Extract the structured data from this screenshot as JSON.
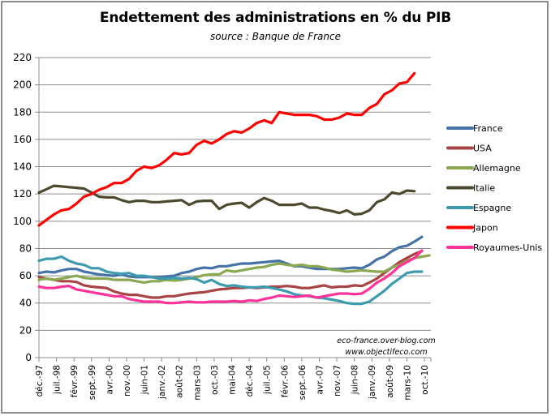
{
  "chart_data": {
    "type": "line",
    "title": "Endettement des administrations  en % du PIB",
    "subtitle": "source : Banque de France",
    "xlabel": "",
    "ylabel": "",
    "ylim": [
      0,
      220
    ],
    "yticks": [
      0,
      20,
      40,
      60,
      80,
      100,
      120,
      140,
      160,
      180,
      200,
      220
    ],
    "grid": true,
    "legend_position": "right",
    "x_tick_labels": [
      "déc.-97",
      "juil.-98",
      "févr.-99",
      "sept.-99",
      "avr.-00",
      "nov.-00",
      "juin-01",
      "janv.-02",
      "août-02",
      "mars-03",
      "oct.-03",
      "mai-04",
      "déc.-04",
      "juil.-05",
      "févr.-06",
      "sept.-06",
      "avr.-07",
      "nov.-07",
      "juin-08",
      "janv.-09",
      "août-09",
      "mars-10",
      "oct.-10"
    ],
    "x_tick_interval_months": 7,
    "x_start": "déc.-97",
    "point_interval_months": 3,
    "series": [
      {
        "name": "France",
        "color": "#4672a8",
        "values": [
          62,
          63,
          62.5,
          64,
          65,
          65,
          63,
          62,
          61,
          60.5,
          60,
          61,
          59.5,
          59,
          59,
          59,
          59,
          59.5,
          60,
          62,
          63,
          65,
          66,
          65.5,
          67,
          67,
          68,
          69,
          69,
          69.5,
          70,
          70.5,
          71,
          69,
          67,
          67,
          66,
          65,
          65,
          65,
          65,
          65.5,
          66,
          65.5,
          68,
          72,
          74,
          78,
          81,
          82,
          85,
          88.5
        ]
      },
      {
        "name": "USA",
        "color": "#a84443",
        "values": [
          59,
          58,
          57,
          56,
          56,
          55.5,
          53,
          52,
          51.5,
          51,
          48.5,
          47,
          46,
          46,
          45,
          44,
          44,
          45,
          45,
          46,
          47,
          47.5,
          48,
          49,
          50,
          50.5,
          51,
          51,
          51.5,
          51,
          51.5,
          52,
          52,
          52.5,
          52,
          51,
          51,
          52,
          53,
          51.5,
          52,
          52,
          53,
          52.5,
          55,
          58,
          62,
          66,
          70,
          73,
          76,
          78
        ]
      },
      {
        "name": "Allemagne",
        "color": "#8aa84f",
        "values": [
          57,
          58,
          57,
          58,
          59,
          60,
          58.5,
          58,
          58,
          58,
          57,
          57,
          57,
          56,
          55,
          56,
          56,
          57,
          56.5,
          57,
          58,
          59,
          60.5,
          61,
          61,
          64,
          63,
          64,
          65,
          66,
          66.5,
          68,
          69,
          68,
          67.5,
          68,
          67,
          67,
          66,
          64.5,
          64,
          63,
          63.5,
          64,
          63.5,
          63,
          63,
          66,
          68,
          71,
          73,
          74,
          75
        ]
      },
      {
        "name": "Italie",
        "color": "#4d4a30",
        "values": [
          121,
          123.5,
          126,
          125.5,
          125,
          124.5,
          124,
          121,
          118,
          117.5,
          117.5,
          115.5,
          114,
          115,
          115,
          114,
          114,
          114.5,
          115,
          115.5,
          112,
          114.5,
          115,
          115,
          109,
          112,
          113,
          113.5,
          110,
          114,
          117,
          115,
          112,
          112,
          112,
          113,
          110,
          110,
          108.5,
          107.5,
          106,
          108,
          105,
          105.5,
          108,
          114,
          116,
          121,
          120,
          122.5,
          122
        ]
      },
      {
        "name": "Espagne",
        "color": "#3e9aaf",
        "values": [
          71,
          72.5,
          72.5,
          74,
          71,
          69,
          68,
          65.5,
          65.5,
          63,
          62,
          61.5,
          62,
          60,
          60,
          59,
          58,
          58,
          58.5,
          58,
          58.5,
          57.5,
          55,
          57,
          54,
          52.5,
          53,
          52,
          51.5,
          51.5,
          52,
          51,
          50,
          48.5,
          46.5,
          45.5,
          45,
          44,
          43.5,
          42.5,
          41.5,
          40,
          39.5,
          39.5,
          41,
          45,
          49,
          54,
          58,
          62,
          63,
          63
        ]
      },
      {
        "name": "Japon",
        "color": "#ff0000",
        "values": [
          97,
          101,
          105,
          108,
          109,
          113,
          118,
          120,
          123,
          125,
          128,
          128,
          131,
          137,
          140,
          139,
          141,
          145,
          150,
          149,
          150,
          156,
          159,
          157,
          160,
          164,
          166,
          165,
          168,
          172,
          174,
          172,
          180,
          179,
          178,
          178,
          178,
          177,
          174.5,
          174.5,
          176,
          179,
          178,
          178,
          183,
          186,
          193,
          196,
          201,
          202,
          208.5
        ]
      },
      {
        "name": "Royaumes-Unis",
        "color": "#ff3399",
        "values": [
          52,
          51,
          51,
          52,
          52.5,
          50,
          49,
          48,
          47,
          46,
          45,
          45,
          43,
          42,
          41,
          41,
          41,
          40,
          40,
          40.5,
          41,
          40.5,
          40.5,
          41,
          41,
          41,
          41.5,
          41,
          42,
          41.5,
          43,
          44,
          45.5,
          45,
          44.5,
          45,
          45.5,
          44,
          45,
          46,
          47,
          47,
          46.5,
          47,
          50.5,
          55,
          58,
          62,
          67,
          70,
          73,
          78.5
        ]
      }
    ],
    "annotations": [
      "eco-france.over-blog.com",
      "www.objectifeco.com"
    ]
  }
}
